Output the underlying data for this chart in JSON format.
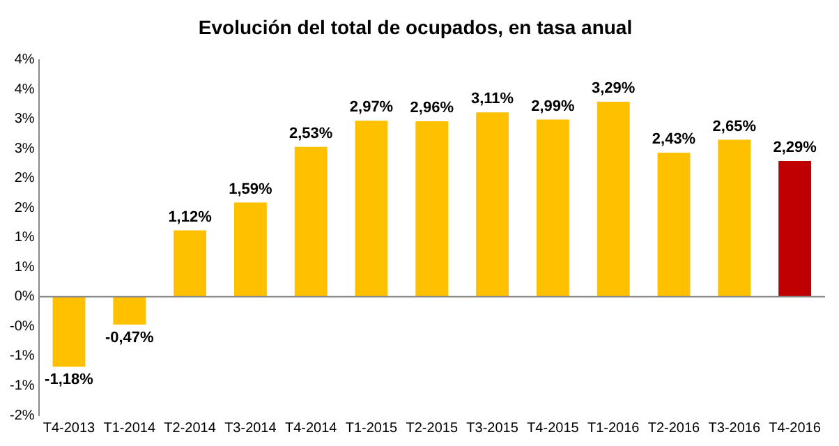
{
  "chart_data": {
    "type": "bar",
    "title": "Evolución del total de ocupados, en tasa anual",
    "categories": [
      "T4-2013",
      "T1-2014",
      "T2-2014",
      "T3-2014",
      "T4-2014",
      "T1-2015",
      "T2-2015",
      "T3-2015",
      "T4-2015",
      "T1-2016",
      "T2-2016",
      "T3-2016",
      "T4-2016"
    ],
    "values": [
      -1.18,
      -0.47,
      1.12,
      1.59,
      2.53,
      2.97,
      2.96,
      3.11,
      2.99,
      3.29,
      2.43,
      2.65,
      2.29
    ],
    "colors": [
      "#ffc000",
      "#ffc000",
      "#ffc000",
      "#ffc000",
      "#ffc000",
      "#ffc000",
      "#ffc000",
      "#ffc000",
      "#ffc000",
      "#ffc000",
      "#ffc000",
      "#ffc000",
      "#c00000"
    ],
    "value_labels": [
      "-1,18%",
      "-0,47%",
      "1,12%",
      "1,59%",
      "2,53%",
      "2,97%",
      "2,96%",
      "3,11%",
      "2,99%",
      "3,29%",
      "2,43%",
      "2,65%",
      "2,29%"
    ],
    "ylim": [
      -2,
      4
    ],
    "yticks": [
      {
        "value": -2,
        "label": "-2%"
      },
      {
        "value": -1.5,
        "label": "-1%"
      },
      {
        "value": -1,
        "label": "-1%"
      },
      {
        "value": -0.5,
        "label": "-0%"
      },
      {
        "value": 0,
        "label": "0%"
      },
      {
        "value": 0.5,
        "label": "1%"
      },
      {
        "value": 1,
        "label": "1%"
      },
      {
        "value": 1.5,
        "label": "2%"
      },
      {
        "value": 2,
        "label": "2%"
      },
      {
        "value": 2.5,
        "label": "3%"
      },
      {
        "value": 3,
        "label": "3%"
      },
      {
        "value": 3.5,
        "label": "4%"
      },
      {
        "value": 4,
        "label": "4%"
      }
    ],
    "ref_lines": [
      {
        "axis": "y",
        "value": 0,
        "color": "#888888"
      }
    ],
    "grid": false,
    "legend": false
  }
}
